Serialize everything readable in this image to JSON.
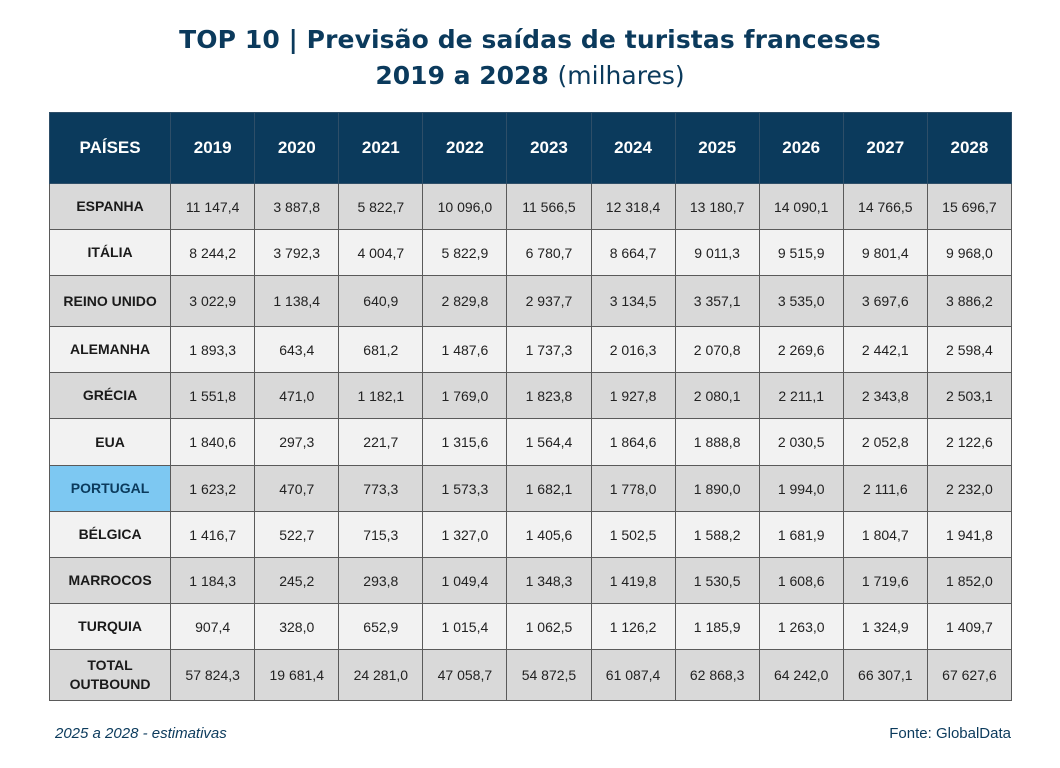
{
  "title": {
    "line1": "TOP 10 | Previsão de saídas de turistas franceses",
    "line2_bold": "2019 a 2028",
    "line2_unit": "(milhares)"
  },
  "footnote": "2025 a 2028 - estimativas",
  "source": "Fonte: GlobalData",
  "colors": {
    "header_bg": "#0b3a5c",
    "highlight_bg": "#7dc8f2",
    "row_dark": "#d9d9d9",
    "row_light": "#f2f2f2"
  },
  "chart_data": {
    "type": "table",
    "header_label": "PAÍSES",
    "columns": [
      "2019",
      "2020",
      "2021",
      "2022",
      "2023",
      "2024",
      "2025",
      "2026",
      "2027",
      "2028"
    ],
    "rows": [
      {
        "label": "ESPANHA",
        "values": [
          "11 147,4",
          "3 887,8",
          "5 822,7",
          "10 096,0",
          "11 566,5",
          "12 318,4",
          "13 180,7",
          "14 090,1",
          "14 766,5",
          "15 696,7"
        ]
      },
      {
        "label": "ITÁLIA",
        "values": [
          "8 244,2",
          "3 792,3",
          "4 004,7",
          "5 822,9",
          "6 780,7",
          "8 664,7",
          "9 011,3",
          "9 515,9",
          "9 801,4",
          "9 968,0"
        ]
      },
      {
        "label": "REINO UNIDO",
        "values": [
          "3 022,9",
          "1 138,4",
          "640,9",
          "2 829,8",
          "2 937,7",
          "3 134,5",
          "3 357,1",
          "3 535,0",
          "3 697,6",
          "3 886,2"
        ]
      },
      {
        "label": "ALEMANHA",
        "values": [
          "1 893,3",
          "643,4",
          "681,2",
          "1 487,6",
          "1 737,3",
          "2 016,3",
          "2 070,8",
          "2 269,6",
          "2 442,1",
          "2 598,4"
        ]
      },
      {
        "label": "GRÉCIA",
        "values": [
          "1 551,8",
          "471,0",
          "1 182,1",
          "1 769,0",
          "1 823,8",
          "1 927,8",
          "2 080,1",
          "2 211,1",
          "2 343,8",
          "2 503,1"
        ]
      },
      {
        "label": "EUA",
        "values": [
          "1 840,6",
          "297,3",
          "221,7",
          "1 315,6",
          "1 564,4",
          "1 864,6",
          "1 888,8",
          "2 030,5",
          "2 052,8",
          "2 122,6"
        ]
      },
      {
        "label": "PORTUGAL",
        "highlight": true,
        "values": [
          "1 623,2",
          "470,7",
          "773,3",
          "1 573,3",
          "1 682,1",
          "1 778,0",
          "1 890,0",
          "1 994,0",
          "2 111,6",
          "2 232,0"
        ]
      },
      {
        "label": "BÉLGICA",
        "values": [
          "1 416,7",
          "522,7",
          "715,3",
          "1 327,0",
          "1 405,6",
          "1 502,5",
          "1 588,2",
          "1 681,9",
          "1 804,7",
          "1 941,8"
        ]
      },
      {
        "label": "MARROCOS",
        "values": [
          "1 184,3",
          "245,2",
          "293,8",
          "1 049,4",
          "1 348,3",
          "1 419,8",
          "1 530,5",
          "1 608,6",
          "1 719,6",
          "1 852,0"
        ]
      },
      {
        "label": "TURQUIA",
        "values": [
          "907,4",
          "328,0",
          "652,9",
          "1 015,4",
          "1 062,5",
          "1 126,2",
          "1 185,9",
          "1 263,0",
          "1 324,9",
          "1 409,7"
        ]
      },
      {
        "label": "TOTAL OUTBOUND",
        "values": [
          "57 824,3",
          "19 681,4",
          "24 281,0",
          "47 058,7",
          "54 872,5",
          "61 087,4",
          "62 868,3",
          "64 242,0",
          "66 307,1",
          "67 627,6"
        ]
      }
    ]
  }
}
